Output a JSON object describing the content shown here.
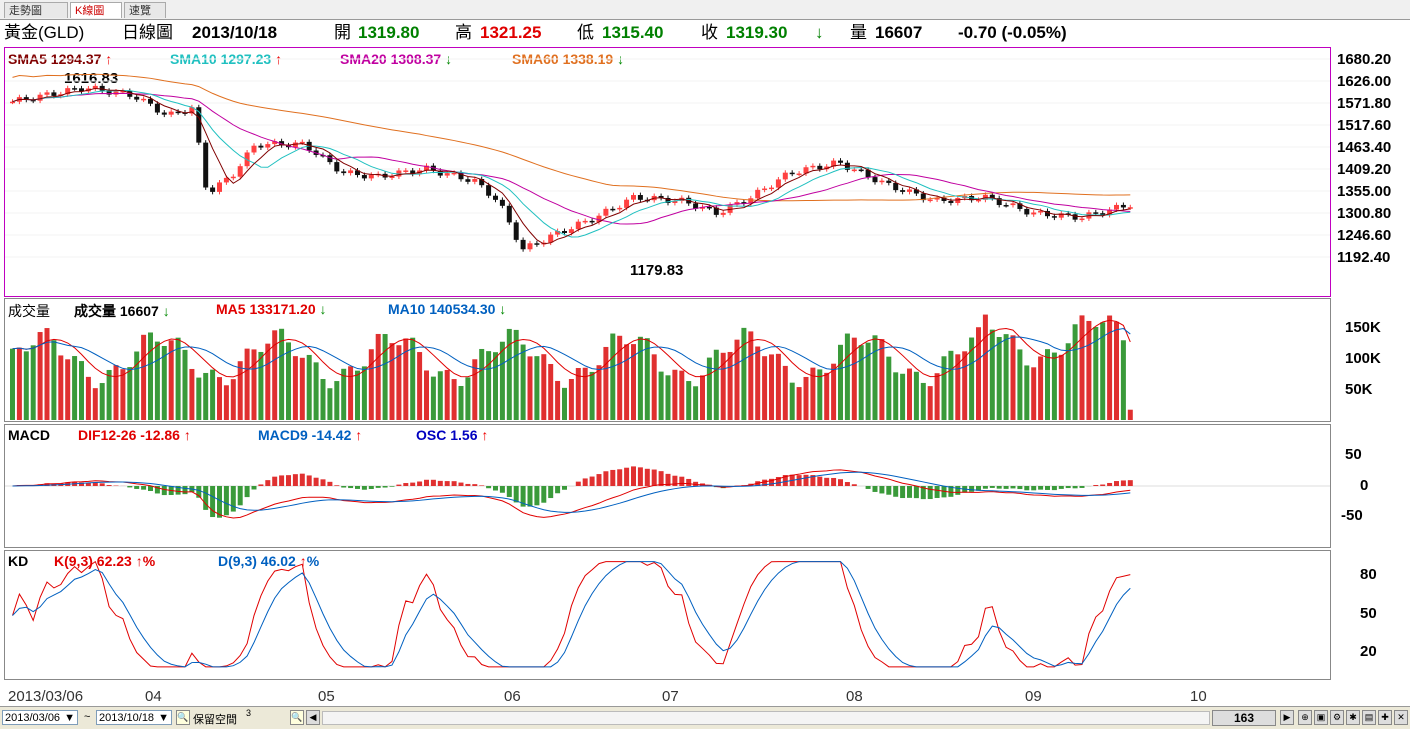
{
  "tabs": [
    "走勢圖",
    "K線圖",
    "速覽"
  ],
  "header": {
    "symbol": "黃金(GLD)",
    "period": "日線圖",
    "date": "2013/10/18",
    "open_label": "開",
    "open": "1319.80",
    "high_label": "高",
    "high": "1321.25",
    "low_label": "低",
    "low": "1315.40",
    "close_label": "收",
    "close": "1319.30",
    "volume_label": "量",
    "volume": "16607",
    "change": "-0.70 (-0.05%)"
  },
  "price_panel": {
    "sma5": "SMA5 1294.37",
    "sma10": "SMA10 1297.23",
    "sma20": "SMA20 1308.37",
    "sma60": "SMA60 1338.19",
    "high_annotation": "1616.83",
    "low_annotation": "1179.83",
    "ticks": [
      "1680.20",
      "1626.00",
      "1571.80",
      "1517.60",
      "1463.40",
      "1409.20",
      "1355.00",
      "1300.80",
      "1246.60",
      "1192.40"
    ]
  },
  "volume_panel": {
    "title": "成交量",
    "vol_label": "成交量 16607",
    "ma5": "MA5 133171.20",
    "ma10": "MA10 140534.30",
    "ticks": [
      "150K",
      "100K",
      "50K"
    ]
  },
  "macd_panel": {
    "title": "MACD",
    "dif": "DIF12-26 -12.86",
    "macd9": "MACD9 -14.42",
    "osc": "OSC 1.56",
    "ticks": [
      "50",
      "0",
      "-50"
    ]
  },
  "kd_panel": {
    "title": "KD",
    "k": "K(9,3) 62.23",
    "k_unit": "%",
    "d": "D(9,3) 46.02",
    "d_unit": "%",
    "ticks": [
      "80",
      "50",
      "20"
    ]
  },
  "x_axis": [
    "2013/03/06",
    "04",
    "05",
    "06",
    "07",
    "08",
    "09",
    "10"
  ],
  "bottom": {
    "start_date": "2013/03/06",
    "tilde": "~",
    "end_date": "2013/10/18",
    "reserve_label": "保留空間",
    "reserve_value": "3",
    "count": "163"
  },
  "colors": {
    "up": "#ff4040",
    "down": "#111111",
    "vol_up": "#e03030",
    "vol_down": "#3a9a3a",
    "sma5": "#800000",
    "sma10": "#20c0c0",
    "sma20": "#c000a0",
    "sma60": "#e07020"
  }
}
